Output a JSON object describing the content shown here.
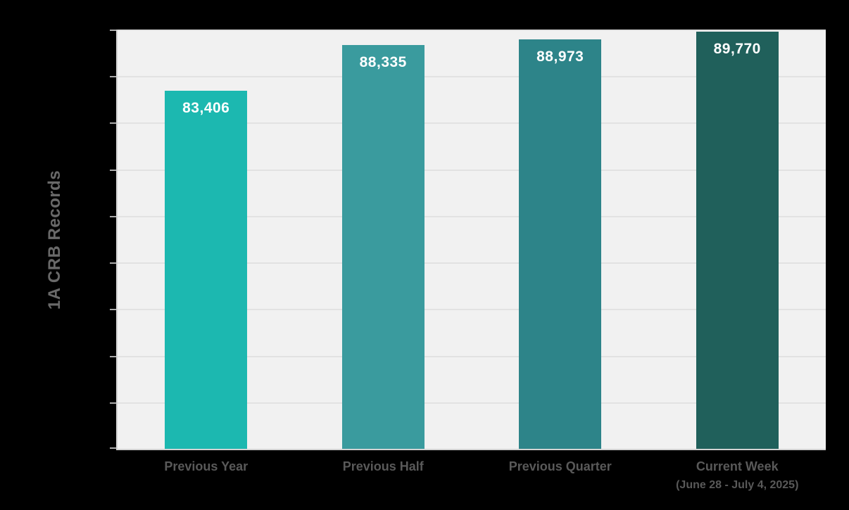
{
  "chart_data": {
    "type": "bar",
    "title": "",
    "xlabel": "",
    "ylabel": "1A CRB Records",
    "categories": [
      "Previous Year",
      "Previous Half",
      "Previous Quarter",
      "Current Week"
    ],
    "category_sublabels": [
      "",
      "",
      "",
      "(June 28 - July 4, 2025)"
    ],
    "values": [
      83406,
      88335,
      88973,
      89770
    ],
    "value_labels": [
      "83,406",
      "88,335",
      "88,973",
      "89,770"
    ],
    "bar_colors": [
      "#1cb8b0",
      "#3a9b9e",
      "#2d8489",
      "#20605b"
    ],
    "ylim": [
      45000,
      90000
    ],
    "ytick_step": 5000,
    "ytick_labels_visible": false,
    "grid": true,
    "legend": "none"
  },
  "colors": {
    "page_background": "#000000",
    "plot_background": "#f1f1f1",
    "gridline": "#e2e2e2",
    "axis_line": "#d2d2d2",
    "tick": "#ababab",
    "bar_label_text": "#ffffff",
    "axis_label_text": "#595959",
    "y_title_text": "#696969"
  }
}
